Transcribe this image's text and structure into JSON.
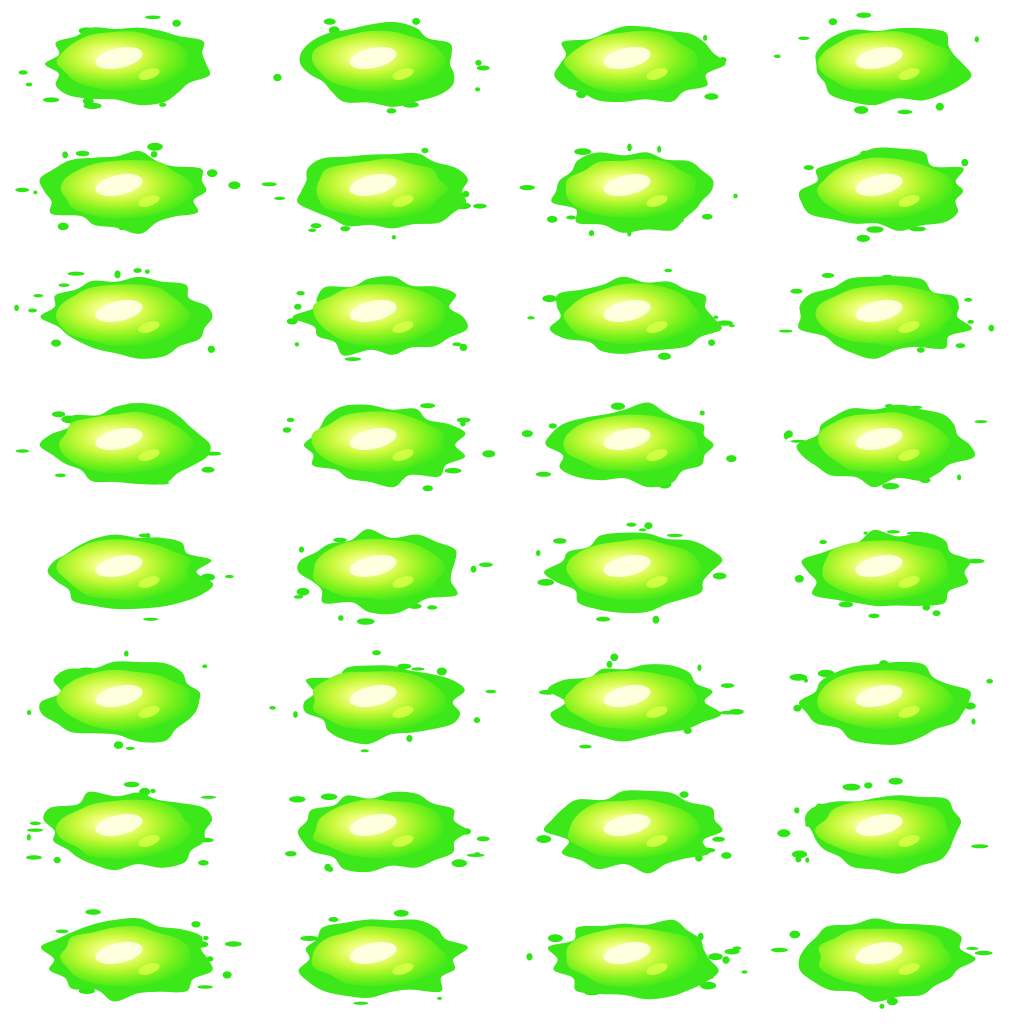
{
  "sprite_sheet": {
    "columns": 4,
    "rows": 8,
    "frame_count": 32,
    "background_color": "#ffffff",
    "colors": {
      "splat_outer": "#3ce81a",
      "splat_mid": "#7cf21c",
      "splat_inner": "#d8ff4a",
      "splat_core": "#ffffc8",
      "splat_highlight": "#ffffe6",
      "droplet": "#2fe615"
    },
    "sprite_name": "green-slime-splat"
  }
}
